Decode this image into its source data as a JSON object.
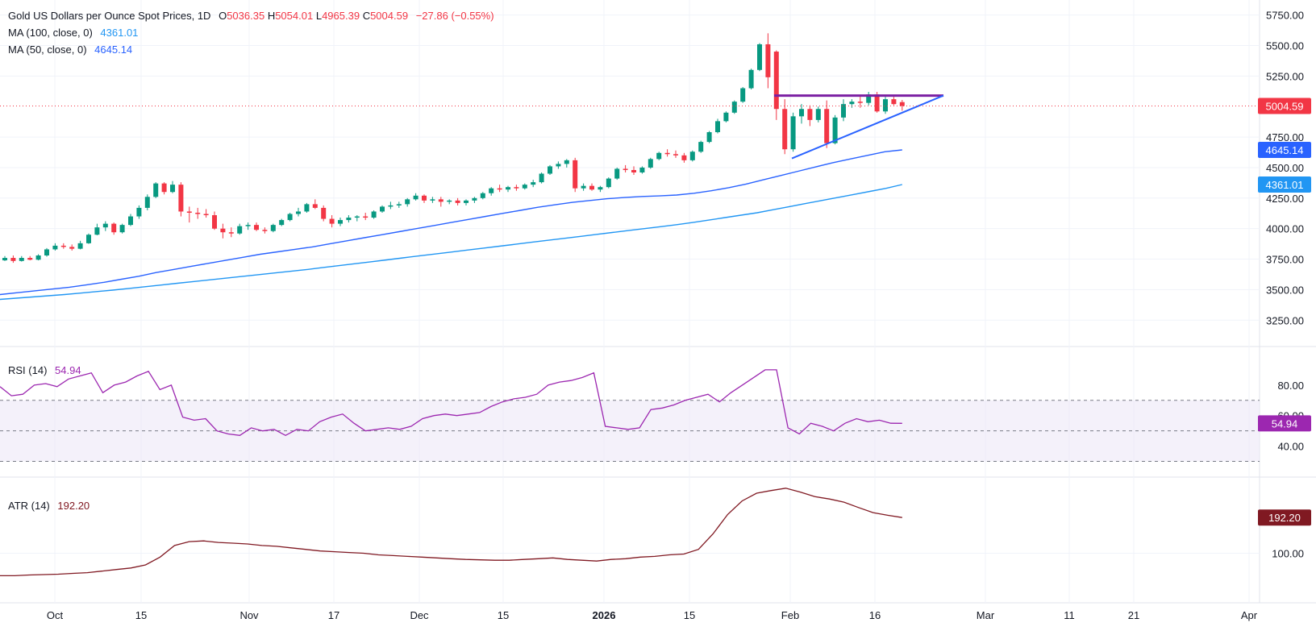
{
  "title": "Gold US Dollars per Ounce Spot Prices, 1D",
  "ohlc": {
    "o_label": "O",
    "o": "5036.35",
    "h_label": "H",
    "h": "5054.01",
    "l_label": "L",
    "l": "4965.39",
    "c_label": "C",
    "c": "5004.59",
    "change": "−27.86 (−0.55%)"
  },
  "indicators": {
    "ma100": {
      "label": "MA (100, close, 0)",
      "value": "4361.01"
    },
    "ma50": {
      "label": "MA (50, close, 0)",
      "value": "4645.14"
    },
    "rsi": {
      "label": "RSI (14)",
      "value": "54.94"
    },
    "atr": {
      "label": "ATR (14)",
      "value": "192.20"
    }
  },
  "badges": {
    "price": "5004.59",
    "ma50": "4645.14",
    "ma100": "4361.01",
    "rsi": "54.94",
    "atr": "192.20"
  },
  "colors": {
    "up": "#089981",
    "down": "#f23645",
    "ma50": "#2962ff",
    "ma100": "#2196f3",
    "rsi": "#9c27b0",
    "atr": "#801922",
    "pattern_top": "#7b1fa2",
    "pattern_bottom": "#2962ff",
    "grid": "#f0f3fa",
    "rsi_band": "#ede7f6"
  },
  "chart_data": [
    {
      "type": "candlestick",
      "name": "price",
      "y_axis_ticks": [
        "5750.00",
        "5500.00",
        "5250.00",
        "4750.00",
        "4500.00",
        "4250.00",
        "4000.00",
        "3750.00",
        "3500.00",
        "3250.00"
      ],
      "ylim": [
        3100,
        5820
      ],
      "x_axis_labels": [
        "Oct",
        "15",
        "Nov",
        "17",
        "Dec",
        "15",
        "2026",
        "15",
        "Feb",
        "16",
        "Mar",
        "11",
        "21",
        "Apr"
      ],
      "candles_ohlc": [
        [
          3740,
          3775,
          3735,
          3760
        ],
        [
          3760,
          3780,
          3720,
          3735
        ],
        [
          3735,
          3775,
          3730,
          3760
        ],
        [
          3760,
          3775,
          3740,
          3745
        ],
        [
          3745,
          3790,
          3740,
          3780
        ],
        [
          3780,
          3840,
          3770,
          3830
        ],
        [
          3830,
          3880,
          3820,
          3860
        ],
        [
          3860,
          3880,
          3835,
          3850
        ],
        [
          3850,
          3870,
          3820,
          3835
        ],
        [
          3835,
          3900,
          3830,
          3880
        ],
        [
          3880,
          3960,
          3875,
          3950
        ],
        [
          3950,
          4040,
          3945,
          4010
        ],
        [
          4010,
          4060,
          3980,
          4040
        ],
        [
          4040,
          4050,
          3950,
          3970
        ],
        [
          3970,
          4040,
          3960,
          4030
        ],
        [
          4030,
          4120,
          4020,
          4100
        ],
        [
          4100,
          4190,
          4080,
          4170
        ],
        [
          4170,
          4280,
          4150,
          4260
        ],
        [
          4260,
          4380,
          4250,
          4370
        ],
        [
          4370,
          4380,
          4280,
          4300
        ],
        [
          4300,
          4390,
          4290,
          4360
        ],
        [
          4360,
          4380,
          4100,
          4140
        ],
        [
          4140,
          4180,
          4050,
          4130
        ],
        [
          4130,
          4170,
          4080,
          4120
        ],
        [
          4120,
          4160,
          4090,
          4110
        ],
        [
          4110,
          4140,
          3990,
          4000
        ],
        [
          4000,
          4040,
          3920,
          3970
        ],
        [
          3970,
          4010,
          3930,
          3960
        ],
        [
          3960,
          4040,
          3950,
          4020
        ],
        [
          4020,
          4050,
          3990,
          4030
        ],
        [
          4030,
          4050,
          3980,
          3990
        ],
        [
          3990,
          4010,
          3960,
          3980
        ],
        [
          3980,
          4040,
          3970,
          4030
        ],
        [
          4030,
          4080,
          4020,
          4070
        ],
        [
          4070,
          4130,
          4060,
          4120
        ],
        [
          4120,
          4170,
          4100,
          4140
        ],
        [
          4140,
          4210,
          4130,
          4200
        ],
        [
          4200,
          4240,
          4160,
          4170
        ],
        [
          4170,
          4190,
          4060,
          4080
        ],
        [
          4080,
          4110,
          4010,
          4040
        ],
        [
          4040,
          4090,
          4020,
          4070
        ],
        [
          4070,
          4110,
          4050,
          4090
        ],
        [
          4090,
          4110,
          4060,
          4100
        ],
        [
          4100,
          4130,
          4070,
          4090
        ],
        [
          4090,
          4150,
          4080,
          4140
        ],
        [
          4140,
          4190,
          4130,
          4180
        ],
        [
          4180,
          4220,
          4160,
          4190
        ],
        [
          4190,
          4220,
          4170,
          4200
        ],
        [
          4200,
          4250,
          4180,
          4240
        ],
        [
          4240,
          4290,
          4230,
          4270
        ],
        [
          4270,
          4280,
          4210,
          4230
        ],
        [
          4230,
          4260,
          4210,
          4240
        ],
        [
          4240,
          4260,
          4180,
          4220
        ],
        [
          4220,
          4240,
          4200,
          4230
        ],
        [
          4230,
          4250,
          4190,
          4210
        ],
        [
          4210,
          4240,
          4190,
          4230
        ],
        [
          4230,
          4260,
          4210,
          4250
        ],
        [
          4250,
          4300,
          4240,
          4290
        ],
        [
          4290,
          4340,
          4270,
          4330
        ],
        [
          4330,
          4360,
          4300,
          4320
        ],
        [
          4320,
          4350,
          4300,
          4340
        ],
        [
          4340,
          4360,
          4310,
          4330
        ],
        [
          4330,
          4370,
          4320,
          4360
        ],
        [
          4360,
          4400,
          4340,
          4380
        ],
        [
          4380,
          4460,
          4370,
          4450
        ],
        [
          4450,
          4520,
          4440,
          4510
        ],
        [
          4510,
          4550,
          4490,
          4530
        ],
        [
          4530,
          4570,
          4500,
          4560
        ],
        [
          4560,
          4580,
          4300,
          4330
        ],
        [
          4330,
          4370,
          4310,
          4350
        ],
        [
          4350,
          4370,
          4310,
          4320
        ],
        [
          4320,
          4350,
          4300,
          4340
        ],
        [
          4340,
          4420,
          4330,
          4410
        ],
        [
          4410,
          4500,
          4400,
          4490
        ],
        [
          4490,
          4520,
          4460,
          4480
        ],
        [
          4480,
          4510,
          4440,
          4460
        ],
        [
          4460,
          4510,
          4450,
          4500
        ],
        [
          4500,
          4580,
          4490,
          4570
        ],
        [
          4570,
          4630,
          4560,
          4620
        ],
        [
          4620,
          4650,
          4590,
          4610
        ],
        [
          4610,
          4640,
          4580,
          4600
        ],
        [
          4600,
          4620,
          4540,
          4560
        ],
        [
          4560,
          4640,
          4550,
          4630
        ],
        [
          4630,
          4720,
          4620,
          4710
        ],
        [
          4710,
          4800,
          4700,
          4790
        ],
        [
          4790,
          4900,
          4780,
          4880
        ],
        [
          4880,
          4960,
          4870,
          4950
        ],
        [
          4950,
          5050,
          4940,
          5040
        ],
        [
          5040,
          5160,
          5030,
          5150
        ],
        [
          5150,
          5310,
          5140,
          5300
        ],
        [
          5300,
          5520,
          5290,
          5510
        ],
        [
          5510,
          5600,
          5150,
          5240
        ],
        [
          5450,
          5460,
          4890,
          4980
        ],
        [
          4980,
          5060,
          4610,
          4650
        ],
        [
          4650,
          4950,
          4630,
          4920
        ],
        [
          4920,
          5020,
          4860,
          4980
        ],
        [
          4980,
          5010,
          4840,
          4890
        ],
        [
          4890,
          5000,
          4870,
          4980
        ],
        [
          4980,
          5050,
          4660,
          4700
        ],
        [
          4700,
          4930,
          4690,
          4910
        ],
        [
          4910,
          5060,
          4880,
          5020
        ],
        [
          5020,
          5060,
          4990,
          5040
        ],
        [
          5040,
          5080,
          4990,
          5030
        ],
        [
          5030,
          5120,
          5010,
          5100
        ],
        [
          5100,
          5120,
          4950,
          4960
        ],
        [
          4960,
          5080,
          4940,
          5060
        ],
        [
          5060,
          5080,
          5010,
          5020
        ],
        [
          5036.35,
          5054.01,
          4965.39,
          5004.59
        ]
      ],
      "ma50_polyline": [
        3460,
        3475,
        3490,
        3505,
        3520,
        3540,
        3560,
        3585,
        3610,
        3640,
        3665,
        3690,
        3715,
        3740,
        3765,
        3790,
        3810,
        3830,
        3850,
        3875,
        3900,
        3925,
        3950,
        3975,
        4000,
        4025,
        4050,
        4075,
        4100,
        4125,
        4150,
        4175,
        4195,
        4215,
        4230,
        4245,
        4255,
        4263,
        4268,
        4275,
        4290,
        4310,
        4335,
        4365,
        4400,
        4435,
        4470,
        4505,
        4540,
        4570,
        4600,
        4630,
        4645.14
      ],
      "ma100_polyline": [
        3420,
        3430,
        3440,
        3450,
        3460,
        3472,
        3484,
        3496,
        3510,
        3524,
        3538,
        3552,
        3566,
        3580,
        3594,
        3608,
        3622,
        3636,
        3650,
        3664,
        3680,
        3696,
        3712,
        3728,
        3744,
        3760,
        3776,
        3792,
        3808,
        3824,
        3840,
        3856,
        3872,
        3888,
        3904,
        3920,
        3936,
        3952,
        3968,
        3984,
        4000,
        4016,
        4032,
        4050,
        4070,
        4090,
        4110,
        4130,
        4155,
        4180,
        4205,
        4230,
        4255,
        4280,
        4305,
        4330,
        4361.01
      ],
      "pattern": {
        "resistance": [
          5090,
          5090
        ],
        "support": [
          4575,
          5090
        ]
      }
    },
    {
      "type": "line",
      "name": "RSI (14)",
      "y_axis_ticks": [
        "80.00",
        "60.00",
        "40.00"
      ],
      "ylim": [
        25,
        100
      ],
      "band": [
        30,
        70
      ],
      "midline": 50,
      "values": [
        79,
        73,
        74,
        80,
        81,
        79,
        84,
        86,
        88,
        75,
        80,
        82,
        86,
        89,
        77,
        80,
        59,
        57,
        58,
        50,
        48,
        47,
        52,
        50,
        51,
        47,
        51,
        50,
        56,
        59,
        61,
        55,
        50,
        51,
        52,
        51,
        53,
        58,
        60,
        61,
        60,
        61,
        62,
        66,
        69,
        71,
        72,
        74,
        80,
        82,
        83,
        85,
        88,
        53,
        52,
        51,
        52,
        64,
        65,
        67,
        70,
        72,
        74,
        69,
        75,
        80,
        85,
        90,
        90,
        52,
        48,
        55,
        53,
        50,
        55,
        58,
        56,
        57,
        55,
        54.94
      ]
    },
    {
      "type": "line",
      "name": "ATR (14)",
      "y_axis_ticks": [
        "100.00"
      ],
      "ylim": [
        20,
        280
      ],
      "values": [
        42,
        42,
        44,
        45,
        46,
        48,
        50,
        54,
        58,
        62,
        70,
        90,
        120,
        130,
        132,
        128,
        126,
        124,
        120,
        118,
        114,
        110,
        106,
        104,
        102,
        100,
        96,
        94,
        92,
        90,
        88,
        86,
        84,
        83,
        82,
        82,
        84,
        86,
        88,
        84,
        82,
        80,
        84,
        86,
        90,
        92,
        96,
        98,
        110,
        150,
        200,
        235,
        255,
        262,
        268,
        258,
        246,
        240,
        232,
        218,
        205,
        198,
        192.2
      ]
    }
  ]
}
